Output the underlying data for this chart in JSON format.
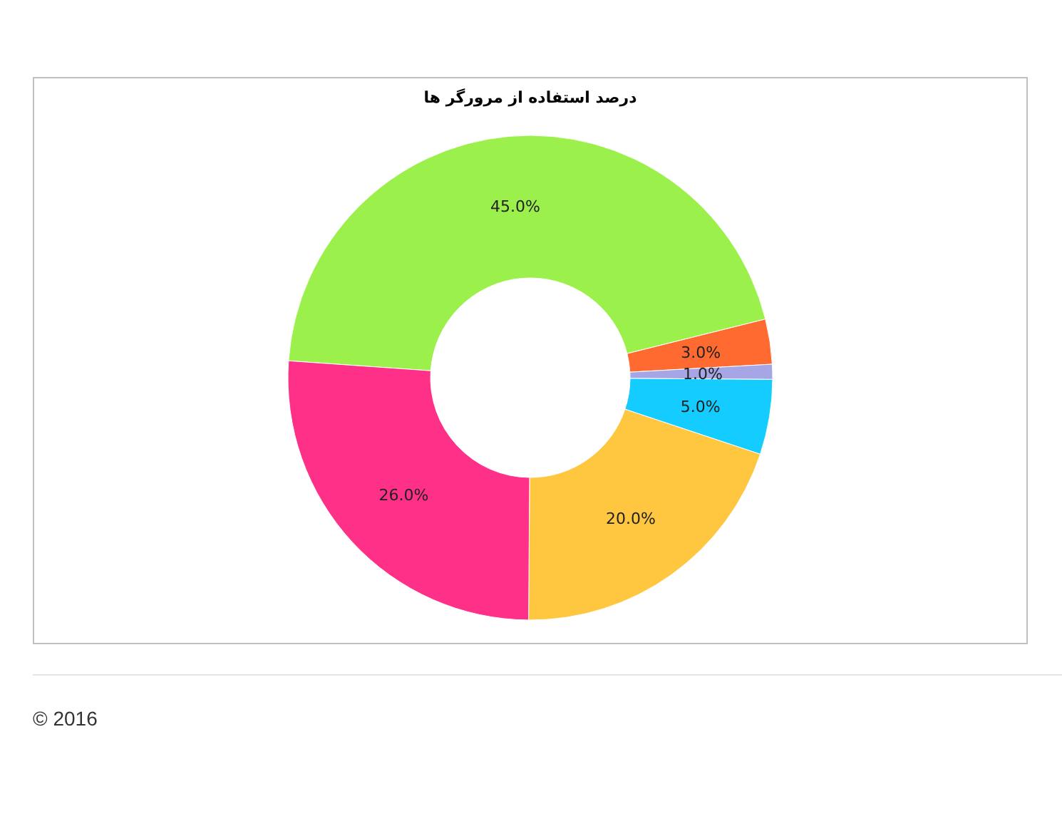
{
  "chart_data": {
    "type": "donut",
    "title": "درصد استفاده از مرورگر ها",
    "categories": [
      null,
      null,
      null,
      null,
      null,
      null
    ],
    "values": [
      45,
      3,
      1,
      5,
      20,
      26
    ],
    "colors": [
      "#9cf04c",
      "#ff6a30",
      "#a6a6e6",
      "#14ccff",
      "#ffc640",
      "#ff3088"
    ],
    "value_labels": [
      "45.0%",
      "3.0%",
      "1.0%",
      "5.0%",
      "20.0%",
      "26.0%"
    ],
    "annotations": [
      "© 2016"
    ]
  }
}
